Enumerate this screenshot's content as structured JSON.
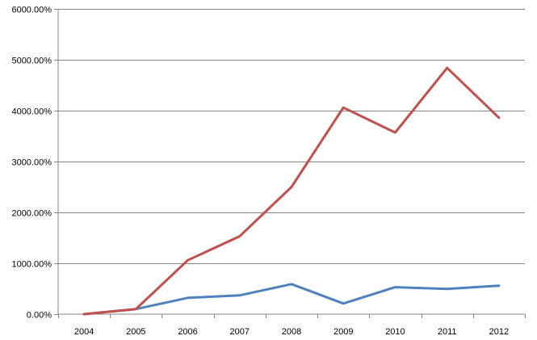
{
  "chart_data": {
    "type": "line",
    "title": "",
    "xlabel": "",
    "ylabel": "",
    "categories": [
      "2004",
      "2005",
      "2006",
      "2007",
      "2008",
      "2009",
      "2010",
      "2011",
      "2012"
    ],
    "series": [
      {
        "color": "#4F81BD",
        "values": [
          0,
          100,
          320,
          370,
          590,
          210,
          530,
          495,
          560
        ]
      },
      {
        "color": "#C0504D",
        "values": [
          0,
          100,
          1060,
          1530,
          2500,
          4060,
          3570,
          4840,
          3860
        ]
      }
    ],
    "ylim": [
      0,
      6000
    ],
    "y_ticks": [
      0,
      1000,
      2000,
      3000,
      4000,
      5000,
      6000
    ],
    "y_tick_labels": [
      "0.00%",
      "1000.00%",
      "2000.00%",
      "3000.00%",
      "4000.00%",
      "5000.00%",
      "6000.00%"
    ],
    "grid": "horizontal",
    "legend": "none"
  }
}
